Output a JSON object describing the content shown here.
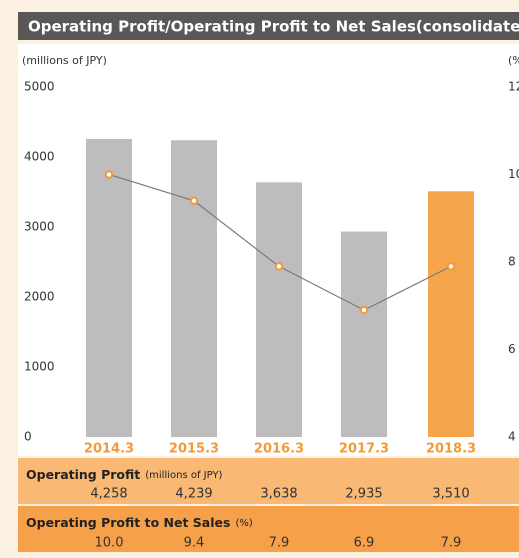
{
  "chart_data": {
    "type": "bar",
    "title": "Operating Profit/Operating Profit to Net Sales(consolidated",
    "y_label": "(millions of JPY)",
    "y2_label": "(%",
    "categories": [
      "2014.3",
      "2015.3",
      "2016.3",
      "2017.3",
      "2018.3"
    ],
    "ylim": [
      0,
      5000
    ],
    "yticks": [
      0,
      1000,
      2000,
      3000,
      4000,
      5000
    ],
    "y2lim": [
      4,
      12
    ],
    "y2ticks": [
      4,
      6,
      8,
      10,
      12
    ],
    "grid": false,
    "series": [
      {
        "name": "Operating Profit",
        "unit": "(millions of JPY)",
        "type": "bar",
        "color": "#bdbdbd",
        "colors": [
          "#bdbdbd",
          "#bdbdbd",
          "#bdbdbd",
          "#bdbdbd",
          "#f7a54a"
        ],
        "values": [
          4258,
          4239,
          3638,
          2935,
          3510
        ],
        "value_labels": [
          "4,258",
          "4,239",
          "3,638",
          "2,935",
          "3,510"
        ]
      },
      {
        "name": "Operating Profit to Net Sales",
        "unit": "(%)",
        "type": "line",
        "axis": "y2",
        "color": "#7a7a7a",
        "marker_color": "#f29a38",
        "values": [
          10.0,
          9.4,
          7.9,
          6.9,
          7.9
        ],
        "value_labels": [
          "10.0",
          "9.4",
          "7.9",
          "6.9",
          "7.9"
        ]
      }
    ]
  }
}
